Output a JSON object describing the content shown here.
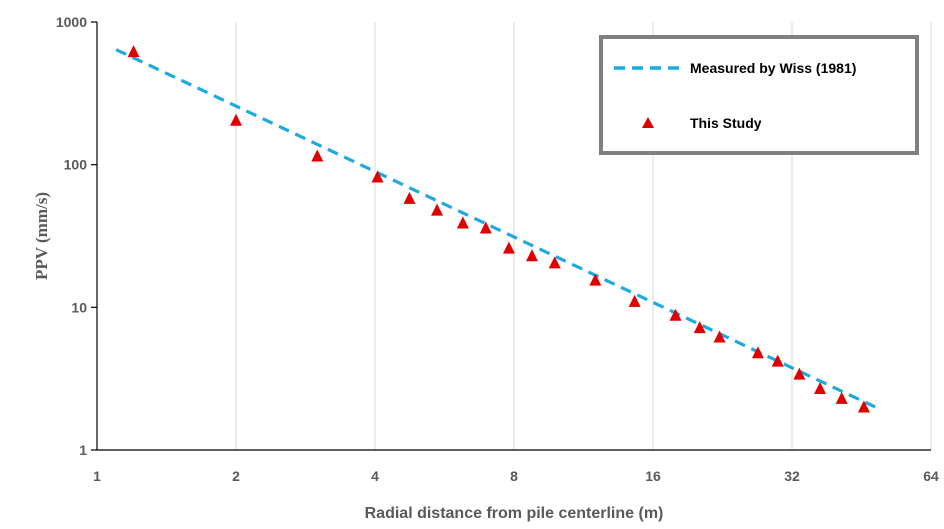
{
  "chart_data": {
    "type": "scatter",
    "xlabel": "Radial distance from pile centerline (m)",
    "ylabel": "PPV (mm/s)",
    "x_scale": "log2",
    "y_scale": "log10",
    "xlim": [
      1,
      64
    ],
    "ylim": [
      1,
      1000
    ],
    "x_ticks": [
      "1",
      "2",
      "4",
      "8",
      "16",
      "32",
      "64"
    ],
    "y_ticks": [
      "1",
      "10",
      "100",
      "1000"
    ],
    "grid": {
      "vertical": true,
      "horizontal": false
    },
    "legend_position": "top-right",
    "series": [
      {
        "name": "Measured by Wiss (1981)",
        "kind": "dashed-line",
        "color": "#1FA9E1",
        "x": [
          1.1,
          48.5
        ],
        "y": [
          640,
          2.0
        ]
      },
      {
        "name": "This Study",
        "kind": "triangle-markers",
        "color": "#E00000",
        "x": [
          1.2,
          2.0,
          3.0,
          4.05,
          4.75,
          5.45,
          6.2,
          6.95,
          7.8,
          8.75,
          9.8,
          12.0,
          14.6,
          17.9,
          20.2,
          22.3,
          27.0,
          29.8,
          33.2,
          36.8,
          41.0,
          45.8
        ],
        "y": [
          620,
          205,
          115,
          82,
          58,
          48,
          39,
          36,
          26,
          23,
          20.5,
          15.5,
          11,
          8.8,
          7.2,
          6.2,
          4.8,
          4.2,
          3.4,
          2.7,
          2.3,
          2.0
        ]
      }
    ]
  }
}
